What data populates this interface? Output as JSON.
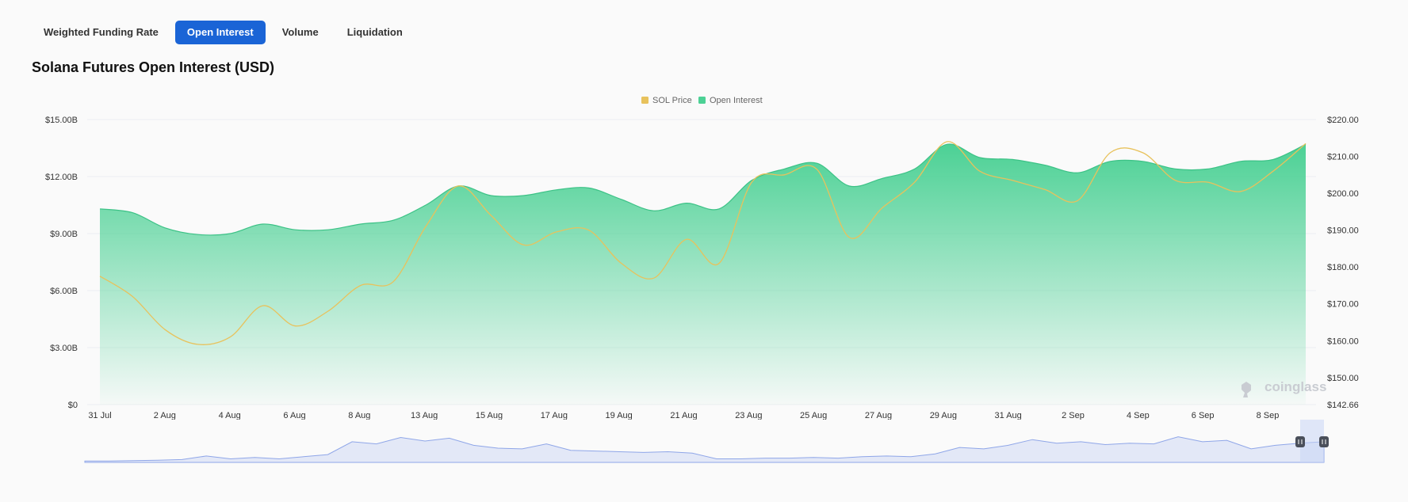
{
  "tabs": [
    {
      "label": "Weighted Funding Rate",
      "active": false
    },
    {
      "label": "Open Interest",
      "active": true
    },
    {
      "label": "Volume",
      "active": false
    },
    {
      "label": "Liquidation",
      "active": false
    }
  ],
  "title": "Solana Futures Open Interest (USD)",
  "watermark": "coinglass",
  "colors": {
    "accent": "#1a64d6",
    "open_interest": "#4cd195",
    "sol_price": "#e8c25c",
    "navigator": "#8fa6e8"
  },
  "chart_data": {
    "type": "area",
    "title": "Solana Futures Open Interest (USD)",
    "legend": [
      "SOL Price",
      "Open Interest"
    ],
    "legend_position": "top-center",
    "x_tick_labels": [
      "31 Jul",
      "2 Aug",
      "4 Aug",
      "6 Aug",
      "8 Aug",
      "13 Aug",
      "15 Aug",
      "17 Aug",
      "19 Aug",
      "21 Aug",
      "23 Aug",
      "25 Aug",
      "27 Aug",
      "29 Aug",
      "31 Aug",
      "2 Sep",
      "4 Sep",
      "6 Sep",
      "8 Sep"
    ],
    "y_left": {
      "ticks": [
        0,
        3,
        6,
        9,
        12,
        15
      ],
      "tick_labels": [
        "$0",
        "$3.00B",
        "$6.00B",
        "$9.00B",
        "$12.00B",
        "$15.00B"
      ],
      "range": [
        0,
        15
      ],
      "unit": "B USD"
    },
    "y_right": {
      "ticks": [
        142.66,
        150,
        160,
        170,
        180,
        190,
        200,
        210,
        220
      ],
      "tick_labels": [
        "$142.66",
        "$150.00",
        "$160.00",
        "$170.00",
        "$180.00",
        "$190.00",
        "$200.00",
        "$210.00",
        "$220.00"
      ],
      "range": [
        142.66,
        220
      ]
    },
    "x_range": [
      0,
      18.5
    ],
    "series": [
      {
        "name": "Open Interest",
        "axis": "left",
        "points": [
          [
            0,
            10.3
          ],
          [
            0.5,
            10.1
          ],
          [
            1,
            9.3
          ],
          [
            1.5,
            8.95
          ],
          [
            2,
            9.0
          ],
          [
            2.5,
            9.5
          ],
          [
            3,
            9.2
          ],
          [
            3.5,
            9.2
          ],
          [
            4,
            9.5
          ],
          [
            4.5,
            9.7
          ],
          [
            5,
            10.5
          ],
          [
            5.5,
            11.5
          ],
          [
            6,
            11.0
          ],
          [
            6.5,
            11.0
          ],
          [
            7,
            11.3
          ],
          [
            7.5,
            11.4
          ],
          [
            8,
            10.8
          ],
          [
            8.5,
            10.2
          ],
          [
            9,
            10.6
          ],
          [
            9.5,
            10.3
          ],
          [
            10,
            11.8
          ],
          [
            10.5,
            12.4
          ],
          [
            11,
            12.7
          ],
          [
            11.5,
            11.5
          ],
          [
            12,
            11.9
          ],
          [
            12.5,
            12.4
          ],
          [
            13,
            13.7
          ],
          [
            13.5,
            13.0
          ],
          [
            14,
            12.9
          ],
          [
            14.5,
            12.6
          ],
          [
            15,
            12.2
          ],
          [
            15.5,
            12.8
          ],
          [
            16,
            12.8
          ],
          [
            16.5,
            12.4
          ],
          [
            17,
            12.4
          ],
          [
            17.5,
            12.8
          ],
          [
            18,
            12.9
          ],
          [
            18.5,
            13.7
          ]
        ]
      },
      {
        "name": "SOL Price",
        "axis": "right",
        "points": [
          [
            0,
            177.5
          ],
          [
            0.5,
            172
          ],
          [
            1,
            163
          ],
          [
            1.5,
            159
          ],
          [
            2,
            161
          ],
          [
            2.5,
            169.5
          ],
          [
            3,
            164
          ],
          [
            3.5,
            168
          ],
          [
            4,
            175
          ],
          [
            4.5,
            176
          ],
          [
            5,
            191
          ],
          [
            5.5,
            202
          ],
          [
            6,
            194
          ],
          [
            6.5,
            186
          ],
          [
            7,
            189.5
          ],
          [
            7.5,
            190
          ],
          [
            8,
            181
          ],
          [
            8.5,
            177
          ],
          [
            9,
            187.5
          ],
          [
            9.5,
            181
          ],
          [
            10,
            203
          ],
          [
            10.5,
            205
          ],
          [
            11,
            206.5
          ],
          [
            11.5,
            188
          ],
          [
            12,
            196
          ],
          [
            12.5,
            203
          ],
          [
            13,
            214
          ],
          [
            13.5,
            206
          ],
          [
            14,
            203.5
          ],
          [
            14.5,
            201
          ],
          [
            15,
            198
          ],
          [
            15.5,
            211
          ],
          [
            16,
            211
          ],
          [
            16.5,
            203.5
          ],
          [
            17,
            203
          ],
          [
            17.5,
            200.5
          ],
          [
            18,
            206
          ],
          [
            18.5,
            213.5
          ]
        ]
      }
    ],
    "navigator": {
      "series": "Open Interest",
      "values": [
        0.2,
        0.2,
        0.25,
        0.3,
        0.4,
        0.9,
        0.5,
        0.7,
        0.5,
        0.8,
        1.1,
        2.9,
        2.6,
        3.5,
        3.0,
        3.4,
        2.4,
        2.0,
        1.9,
        2.6,
        1.7,
        1.6,
        1.5,
        1.4,
        1.5,
        1.3,
        0.5,
        0.5,
        0.6,
        0.6,
        0.7,
        0.6,
        0.8,
        0.9,
        0.8,
        1.2,
        2.1,
        1.9,
        2.4,
        3.2,
        2.7,
        2.9,
        2.5,
        2.7,
        2.6,
        3.6,
        2.9,
        3.1,
        1.9,
        2.4,
        2.7,
        2.9
      ]
    }
  }
}
